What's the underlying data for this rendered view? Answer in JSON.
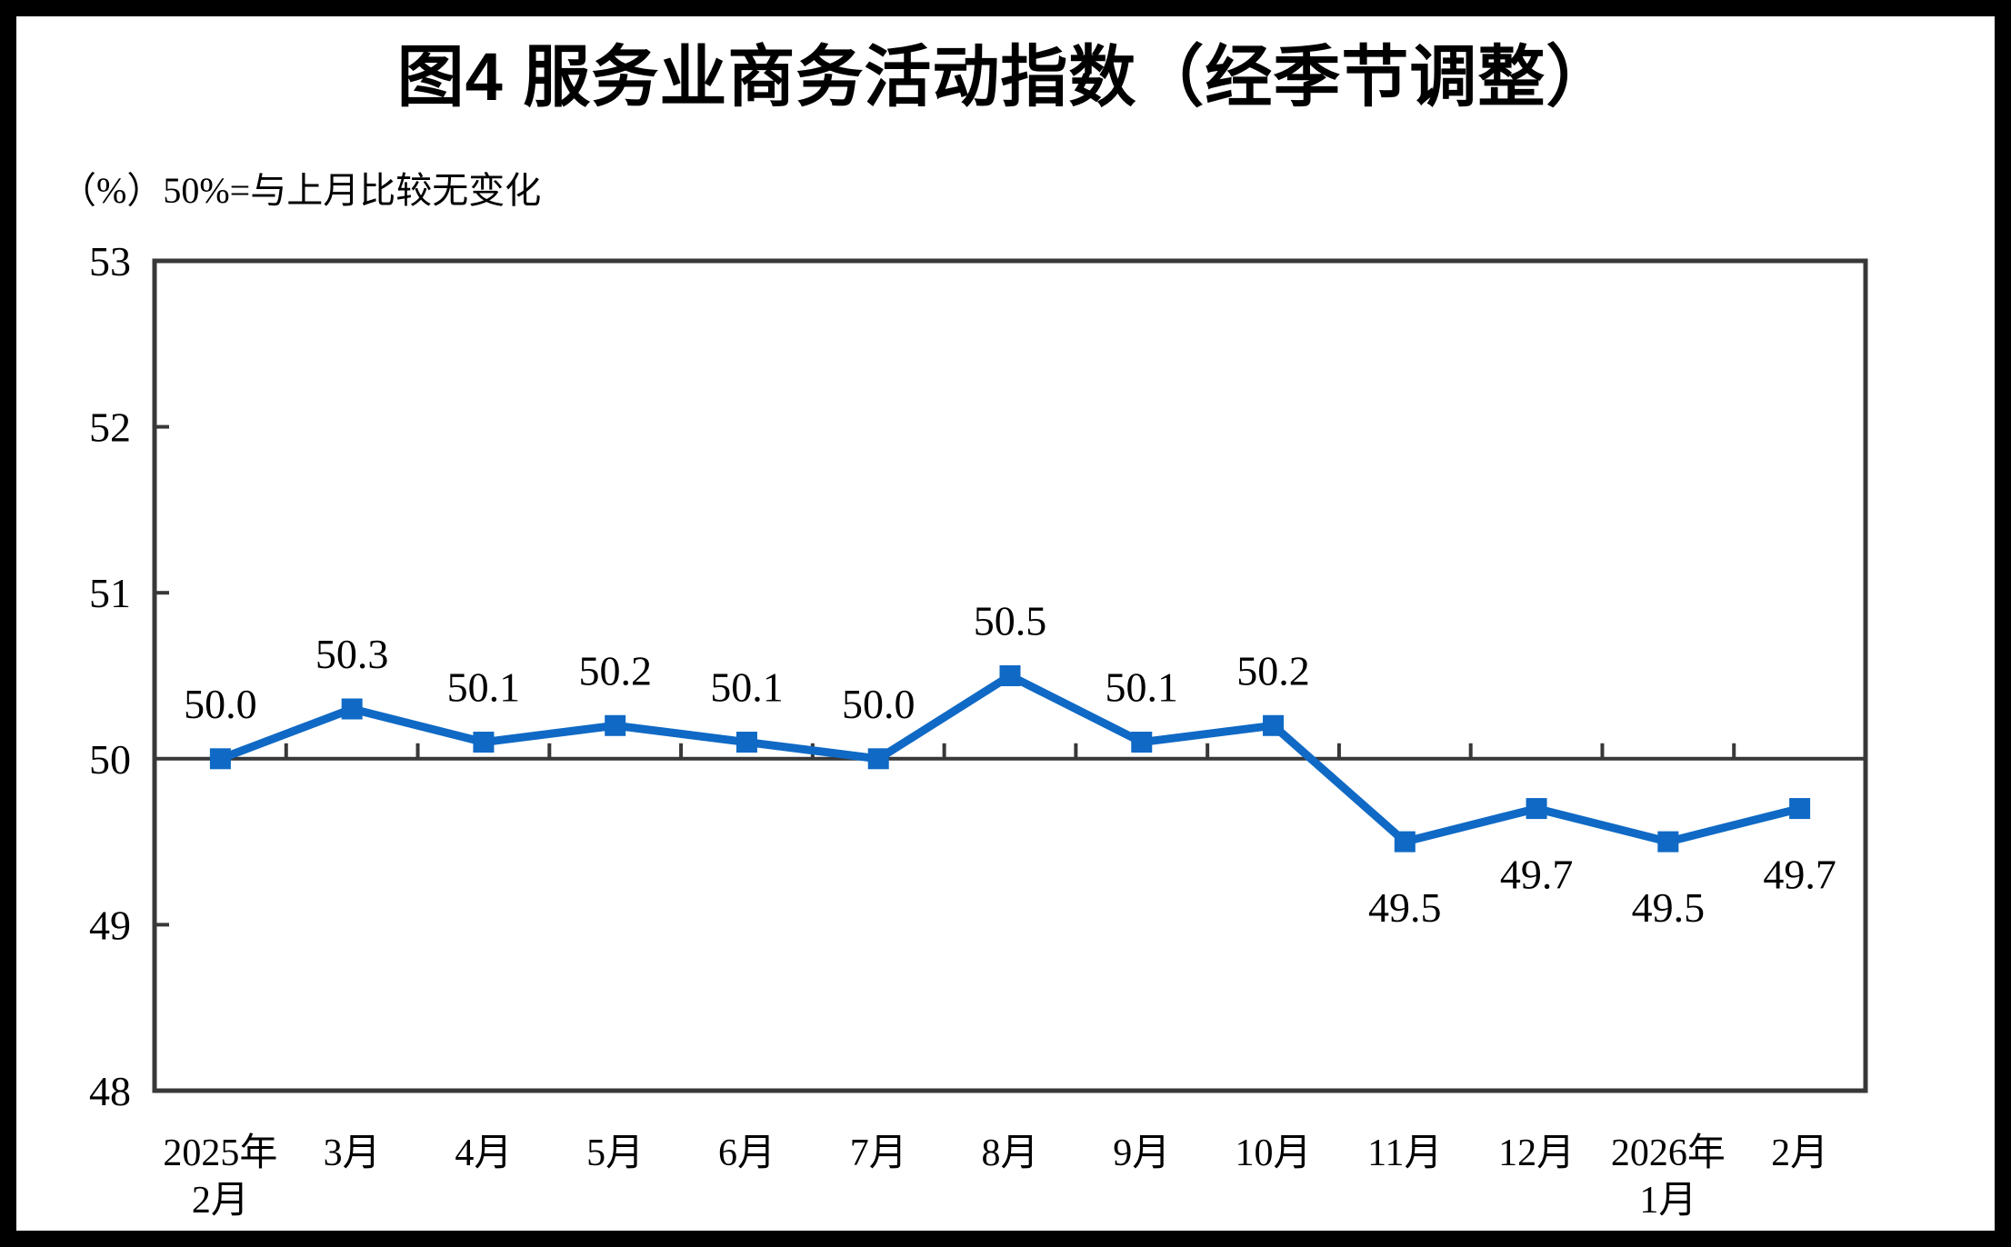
{
  "figure": {
    "title": "图4  服务业商务活动指数（经季节调整）",
    "subtitle": "（%）50%=与上月比较无变化"
  },
  "chart_data": {
    "type": "line",
    "title": "图4  服务业商务活动指数（经季节调整）",
    "subtitle": "（%）50%=与上月比较无变化",
    "categories": [
      [
        "2025年",
        "2月"
      ],
      [
        "3月"
      ],
      [
        "4月"
      ],
      [
        "5月"
      ],
      [
        "6月"
      ],
      [
        "7月"
      ],
      [
        "8月"
      ],
      [
        "9月"
      ],
      [
        "10月"
      ],
      [
        "11月"
      ],
      [
        "12月"
      ],
      [
        "2026年",
        "1月"
      ],
      [
        "2月"
      ]
    ],
    "values": [
      50.0,
      50.3,
      50.1,
      50.2,
      50.1,
      50.0,
      50.5,
      50.1,
      50.2,
      49.5,
      49.7,
      49.5,
      49.7
    ],
    "data_labels": [
      "50.0",
      "50.3",
      "50.1",
      "50.2",
      "50.1",
      "50.0",
      "50.5",
      "50.1",
      "50.2",
      "49.5",
      "49.7",
      "49.5",
      "49.7"
    ],
    "ylim": [
      48,
      53
    ],
    "yticks": [
      48,
      49,
      50,
      51,
      52,
      53
    ],
    "category_axis_crosses_at": 50,
    "grid": false,
    "legend": "none",
    "marker": "square",
    "colors": {
      "line": "#0F69C5",
      "marker": "#0F69C5",
      "axis": "#383838",
      "text": "#000000",
      "background": "#FFFFFF",
      "outer_frame": "#000000"
    }
  }
}
